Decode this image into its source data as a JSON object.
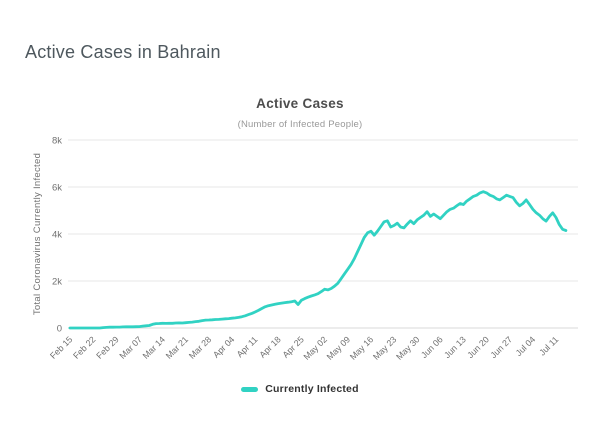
{
  "page": {
    "heading": "Active Cases in Bahrain"
  },
  "chart": {
    "title": "Active Cases",
    "subtitle": "(Number of Infected People)",
    "legend": {
      "label": "Currently Infected"
    }
  },
  "colors": {
    "series": "#31d2c3",
    "grid": "#e7e7e7",
    "zero_axis": "#d9d9d9",
    "axis_text": "#707070",
    "title_text": "#4d4d4d",
    "subtitle_text": "#999999",
    "heading_text": "#4e585e",
    "legend_text": "#333333"
  },
  "chart_data": {
    "type": "line",
    "title": "Active Cases",
    "subtitle": "(Number of Infected People)",
    "xlabel": "",
    "ylabel": "Total Coronavirus Currently Infected",
    "ylim": [
      0,
      8000
    ],
    "y_tick_values": [
      0,
      2000,
      4000,
      6000,
      8000
    ],
    "y_tick_labels": [
      "0",
      "2k",
      "4k",
      "6k",
      "8k"
    ],
    "x_tick_labels": [
      "Feb 15",
      "Feb 22",
      "Feb 29",
      "Mar 07",
      "Mar 14",
      "Mar 21",
      "Mar 28",
      "Apr 04",
      "Apr 11",
      "Apr 18",
      "Apr 25",
      "May 02",
      "May 09",
      "May 16",
      "May 23",
      "May 30",
      "Jun 06",
      "Jun 13",
      "Jun 20",
      "Jun 27",
      "Jul 04",
      "Jul 11"
    ],
    "x_tick_interval": 7,
    "grid": true,
    "legend_position": "bottom",
    "series": [
      {
        "name": "Currently Infected",
        "color": "#31d2c3",
        "values": [
          0,
          0,
          0,
          0,
          0,
          0,
          0,
          0,
          0,
          2,
          17,
          26,
          33,
          36,
          38,
          40,
          47,
          49,
          49,
          52,
          56,
          60,
          79,
          95,
          106,
          156,
          189,
          193,
          201,
          197,
          201,
          202,
          211,
          215,
          212,
          224,
          240,
          253,
          272,
          285,
          315,
          337,
          342,
          350,
          360,
          368,
          380,
          390,
          400,
          415,
          430,
          450,
          480,
          520,
          570,
          620,
          680,
          750,
          830,
          900,
          950,
          980,
          1010,
          1040,
          1060,
          1080,
          1100,
          1120,
          1150,
          1000,
          1180,
          1250,
          1310,
          1360,
          1410,
          1460,
          1550,
          1650,
          1620,
          1680,
          1780,
          1900,
          2100,
          2300,
          2500,
          2700,
          2950,
          3250,
          3550,
          3850,
          4050,
          4120,
          3950,
          4120,
          4320,
          4520,
          4560,
          4300,
          4360,
          4460,
          4300,
          4260,
          4420,
          4560,
          4440,
          4600,
          4700,
          4800,
          4950,
          4750,
          4850,
          4750,
          4650,
          4800,
          4950,
          5050,
          5100,
          5200,
          5300,
          5250,
          5400,
          5500,
          5600,
          5650,
          5750,
          5800,
          5750,
          5650,
          5600,
          5500,
          5450,
          5550,
          5650,
          5600,
          5550,
          5350,
          5200,
          5300,
          5450,
          5250,
          5050,
          4900,
          4800,
          4650,
          4550,
          4750,
          4900,
          4700,
          4400,
          4200,
          4150
        ]
      }
    ]
  }
}
